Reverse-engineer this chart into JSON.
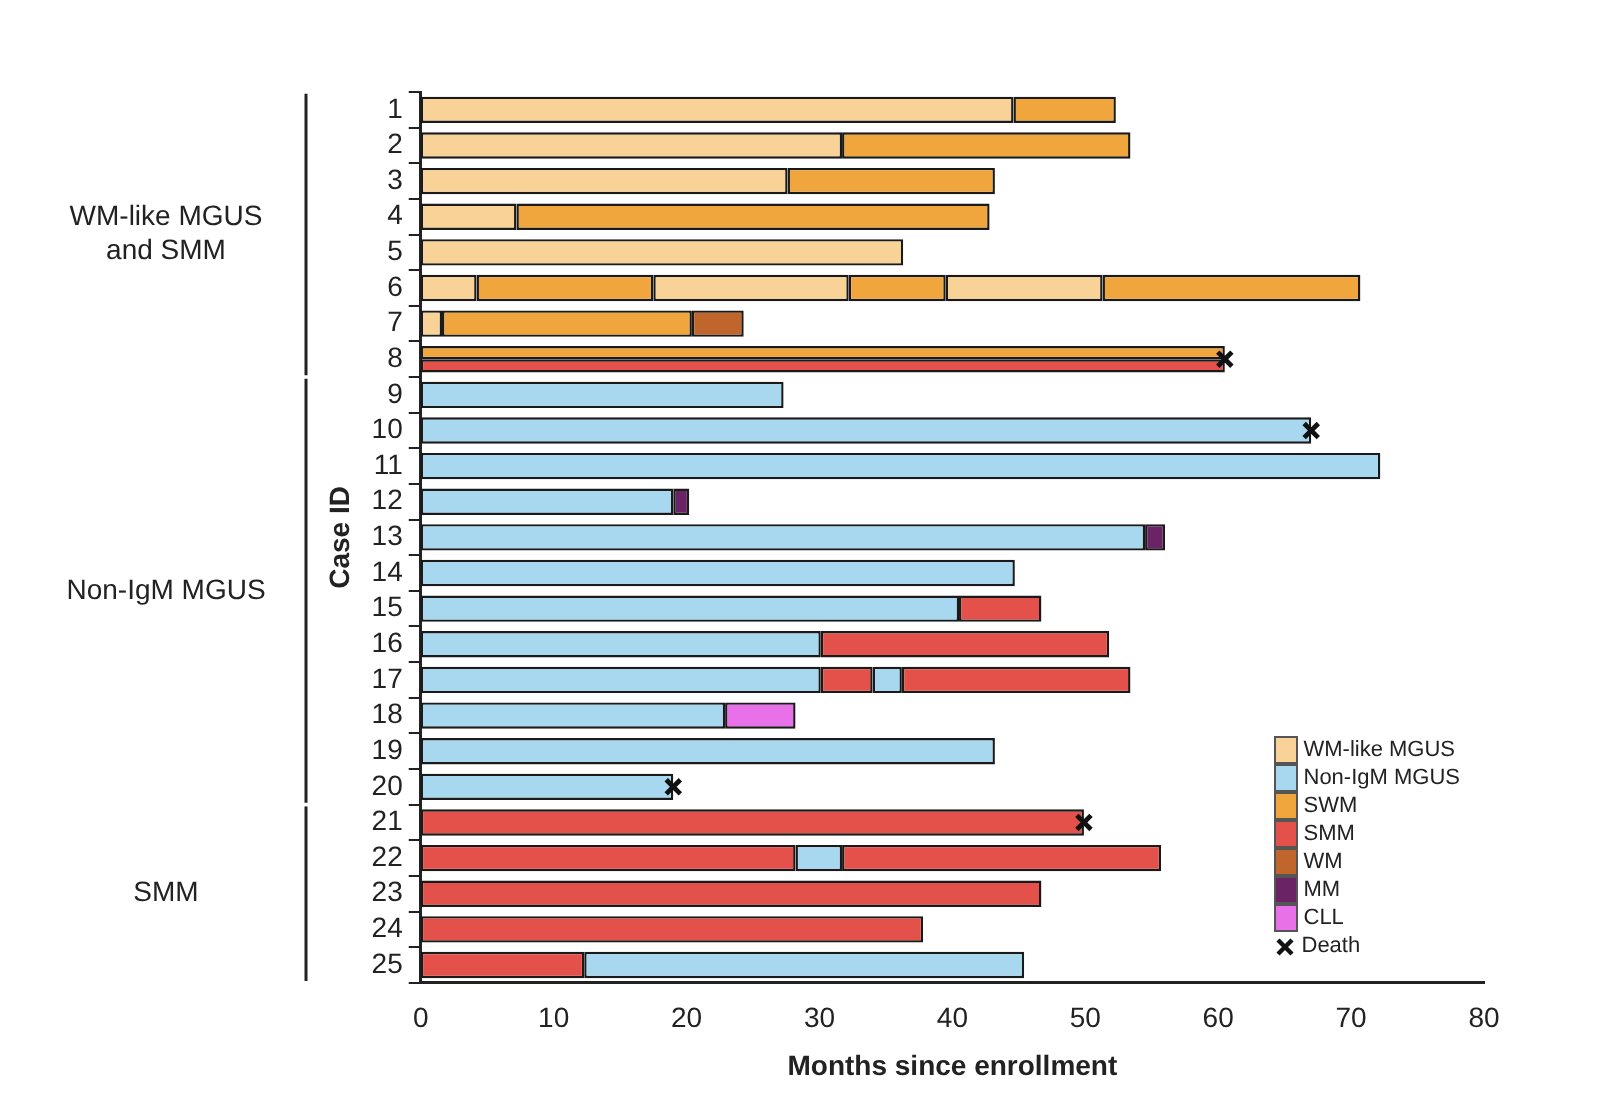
{
  "chart_data": {
    "type": "bar",
    "orientation": "horizontal",
    "xlabel": "Months since enrollment",
    "ylabel": "Case ID",
    "categories": [
      "1",
      "2",
      "3",
      "4",
      "5",
      "6",
      "7",
      "8",
      "9",
      "10",
      "11",
      "12",
      "13",
      "14",
      "15",
      "16",
      "17",
      "18",
      "19",
      "20",
      "21",
      "22",
      "23",
      "24",
      "25"
    ],
    "series": [
      {
        "name": "WM-like MGUS",
        "color": "#f8d296",
        "values": [
          44.6,
          31.7,
          27.6,
          7.2,
          36.3,
          4.2,
          1.6,
          null,
          null,
          null,
          null,
          null,
          null,
          null,
          null,
          null,
          null,
          null,
          null,
          null,
          null,
          null,
          null,
          null,
          null
        ],
        "base": [
          0,
          0,
          0,
          0,
          0,
          0,
          0,
          null,
          null,
          null,
          null,
          null,
          null,
          null,
          null,
          null,
          null,
          null,
          null,
          null,
          null,
          null,
          null,
          null,
          null
        ]
      },
      {
        "name": "Non-IgM MGUS",
        "color": "#a8d8f0",
        "values": [
          null,
          null,
          null,
          null,
          null,
          null,
          null,
          null,
          27.3,
          67.0,
          72.2,
          19.0,
          54.5,
          44.7,
          40.5,
          30.1,
          30.1,
          22.9,
          43.2,
          19.0,
          null,
          3.5,
          null,
          null,
          33.1
        ],
        "base": [
          null,
          null,
          null,
          null,
          null,
          null,
          null,
          null,
          0,
          0,
          0,
          0,
          0,
          0,
          0,
          0,
          0,
          0,
          0,
          0,
          null,
          28.2,
          null,
          null,
          12.3
        ]
      },
      {
        "name": "SWM",
        "color": "#f0a63c",
        "values": [
          7.7,
          21.7,
          15.6,
          35.6,
          null,
          13.3,
          18.8,
          60.5,
          null,
          null,
          null,
          null,
          null,
          null,
          null,
          null,
          null,
          null,
          null,
          null,
          null,
          null,
          null,
          null,
          null
        ],
        "base": [
          44.6,
          31.7,
          27.6,
          7.2,
          null,
          4.2,
          1.6,
          0,
          null,
          null,
          null,
          null,
          null,
          null,
          null,
          null,
          null,
          null,
          null,
          null,
          null,
          null,
          null,
          null,
          null
        ]
      },
      {
        "name": "SMM",
        "color": "#e4514a",
        "values": [
          null,
          null,
          null,
          null,
          null,
          null,
          null,
          null,
          null,
          null,
          null,
          null,
          null,
          null,
          6.2,
          21.7,
          3.9,
          null,
          null,
          null,
          49.9,
          28.2,
          46.7,
          37.8,
          12.3
        ],
        "base": [
          null,
          null,
          null,
          null,
          null,
          null,
          null,
          null,
          null,
          null,
          null,
          null,
          null,
          null,
          40.5,
          30.1,
          30.1,
          null,
          null,
          null,
          0,
          0,
          0,
          0,
          0
        ]
      },
      {
        "name": "WM",
        "color": "#c0652c",
        "values": [
          null,
          null,
          null,
          null,
          null,
          null,
          3.9,
          null,
          null,
          null,
          null,
          null,
          null,
          null,
          null,
          null,
          null,
          null,
          null,
          null,
          null,
          null,
          null,
          null,
          null
        ],
        "base": [
          null,
          null,
          null,
          null,
          null,
          null,
          20.4,
          null,
          null,
          null,
          null,
          null,
          null,
          null,
          null,
          null,
          null,
          null,
          null,
          null,
          null,
          null,
          null,
          null,
          null
        ]
      },
      {
        "name": "MM",
        "color": "#6a2466",
        "values": [
          null,
          null,
          null,
          null,
          null,
          null,
          null,
          null,
          null,
          null,
          null,
          1.2,
          1.5,
          null,
          null,
          null,
          null,
          null,
          null,
          null,
          null,
          null,
          null,
          null,
          null
        ],
        "base": [
          null,
          null,
          null,
          null,
          null,
          null,
          null,
          null,
          null,
          null,
          null,
          19.0,
          54.5,
          null,
          null,
          null,
          null,
          null,
          null,
          null,
          null,
          null,
          null,
          null,
          null
        ]
      },
      {
        "name": "CLL",
        "color": "#e870e8",
        "values": [
          null,
          null,
          null,
          null,
          null,
          null,
          null,
          null,
          null,
          null,
          null,
          null,
          null,
          null,
          null,
          null,
          null,
          5.3,
          null,
          null,
          null,
          null,
          null,
          null,
          null
        ],
        "base": [
          null,
          null,
          null,
          null,
          null,
          null,
          null,
          null,
          null,
          null,
          null,
          null,
          null,
          null,
          null,
          null,
          null,
          22.9,
          null,
          null,
          null,
          null,
          null,
          null,
          null
        ]
      },
      {
        "color": "#f8d296",
        "values": [
          null,
          null,
          null,
          null,
          null,
          14.7,
          null,
          null,
          null,
          null,
          null,
          null,
          null,
          null,
          null,
          null,
          null,
          null,
          null,
          null,
          null,
          null,
          null,
          null,
          null
        ],
        "base": [
          null,
          null,
          null,
          null,
          null,
          17.5,
          null,
          null,
          null,
          null,
          null,
          null,
          null,
          null,
          null,
          null,
          null,
          null,
          null,
          null,
          null,
          null,
          null,
          null,
          null
        ]
      },
      {
        "color": "#f0a63c",
        "values": [
          null,
          null,
          null,
          null,
          null,
          7.3,
          null,
          null,
          null,
          null,
          null,
          null,
          null,
          null,
          null,
          null,
          null,
          null,
          null,
          null,
          null,
          null,
          null,
          null,
          null
        ],
        "base": [
          null,
          null,
          null,
          null,
          null,
          32.2,
          null,
          null,
          null,
          null,
          null,
          null,
          null,
          null,
          null,
          null,
          null,
          null,
          null,
          null,
          null,
          null,
          null,
          null,
          null
        ]
      },
      {
        "color": "#f8d296",
        "values": [
          null,
          null,
          null,
          null,
          null,
          11.8,
          null,
          null,
          null,
          null,
          null,
          null,
          null,
          null,
          null,
          null,
          null,
          null,
          null,
          null,
          null,
          null,
          null,
          null,
          null
        ],
        "base": [
          null,
          null,
          null,
          null,
          null,
          39.5,
          null,
          null,
          null,
          null,
          null,
          null,
          null,
          null,
          null,
          null,
          null,
          null,
          null,
          null,
          null,
          null,
          null,
          null,
          null
        ]
      },
      {
        "color": "#f0a63c",
        "values": [
          null,
          null,
          null,
          null,
          null,
          19.4,
          null,
          null,
          null,
          null,
          null,
          null,
          null,
          null,
          null,
          null,
          null,
          null,
          null,
          null,
          null,
          null,
          null,
          null,
          null
        ],
        "base": [
          null,
          null,
          null,
          null,
          null,
          51.3,
          null,
          null,
          null,
          null,
          null,
          null,
          null,
          null,
          null,
          null,
          null,
          null,
          null,
          null,
          null,
          null,
          null,
          null,
          null
        ]
      },
      {
        "color": "#a8d8f0",
        "values": [
          null,
          null,
          null,
          null,
          null,
          null,
          null,
          null,
          null,
          null,
          null,
          null,
          null,
          null,
          null,
          null,
          2.2,
          null,
          null,
          null,
          null,
          null,
          null,
          null,
          null
        ],
        "base": [
          null,
          null,
          null,
          null,
          null,
          null,
          null,
          null,
          null,
          null,
          null,
          null,
          null,
          null,
          null,
          null,
          34.0,
          null,
          null,
          null,
          null,
          null,
          null,
          null,
          null
        ]
      },
      {
        "color": "#e4514a",
        "values": [
          null,
          null,
          null,
          null,
          null,
          null,
          null,
          null,
          null,
          null,
          null,
          null,
          null,
          null,
          null,
          null,
          17.2,
          null,
          null,
          null,
          null,
          24.0,
          null,
          null,
          null
        ],
        "base": [
          null,
          null,
          null,
          null,
          null,
          null,
          null,
          null,
          null,
          null,
          null,
          null,
          null,
          null,
          null,
          null,
          36.2,
          null,
          null,
          null,
          null,
          31.7,
          null,
          null,
          null
        ]
      },
      {
        "color": "#e4514a",
        "values": [
          null,
          null,
          null,
          null,
          null,
          null,
          null,
          60.5,
          null,
          null,
          null,
          null,
          null,
          null,
          null,
          null,
          null,
          null,
          null,
          null,
          null,
          null,
          null,
          null,
          null
        ],
        "base": [
          null,
          null,
          null,
          null,
          null,
          null,
          null,
          0,
          null,
          null,
          null,
          null,
          null,
          null,
          null,
          null,
          null,
          null,
          null,
          null,
          null,
          null,
          null,
          null,
          null
        ]
      },
      {
        "type": "scatter",
        "name": "Death",
        "marker": "cross",
        "color": "#111111",
        "x": [
          "8",
          "10",
          "20",
          "21"
        ],
        "values": [
          60.5,
          67.0,
          19.0,
          49.9
        ]
      }
    ],
    "annotations": [
      "WM-like MGUS and SMM",
      "Non-IgM MGUS",
      "SMM"
    ],
    "xlim": [
      0,
      80
    ],
    "xticks": [
      0,
      10,
      20,
      30,
      40,
      50,
      60,
      70,
      80
    ],
    "grid": false,
    "legend": "bottom right"
  }
}
